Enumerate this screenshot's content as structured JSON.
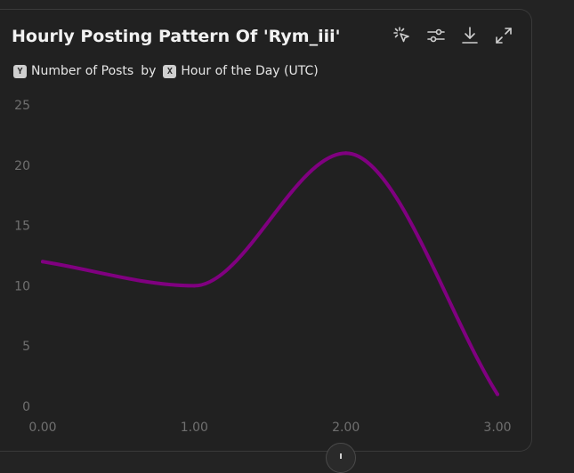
{
  "card": {
    "title": "Hourly Posting Pattern Of 'Rym_iii'",
    "subtitle": {
      "y_badge": "Y",
      "y_label": "Number of Posts",
      "by": "by",
      "x_badge": "X",
      "x_label": "Hour of the Day (UTC)"
    }
  },
  "toolbar": {
    "icons": [
      "select-pointer-icon",
      "sliders-icon",
      "download-icon",
      "expand-icon"
    ]
  },
  "chart_data": {
    "type": "line",
    "x": [
      0,
      1,
      2,
      3
    ],
    "values": [
      12,
      10,
      21,
      1
    ],
    "x_tick_labels": [
      "0.00",
      "1.00",
      "2.00",
      "3.00"
    ],
    "y_ticks": [
      0,
      5,
      10,
      15,
      20,
      25
    ],
    "ylim": [
      0,
      25
    ],
    "xlim": [
      0,
      3
    ],
    "line_color": "#800080",
    "grid": false,
    "legend": "none"
  }
}
